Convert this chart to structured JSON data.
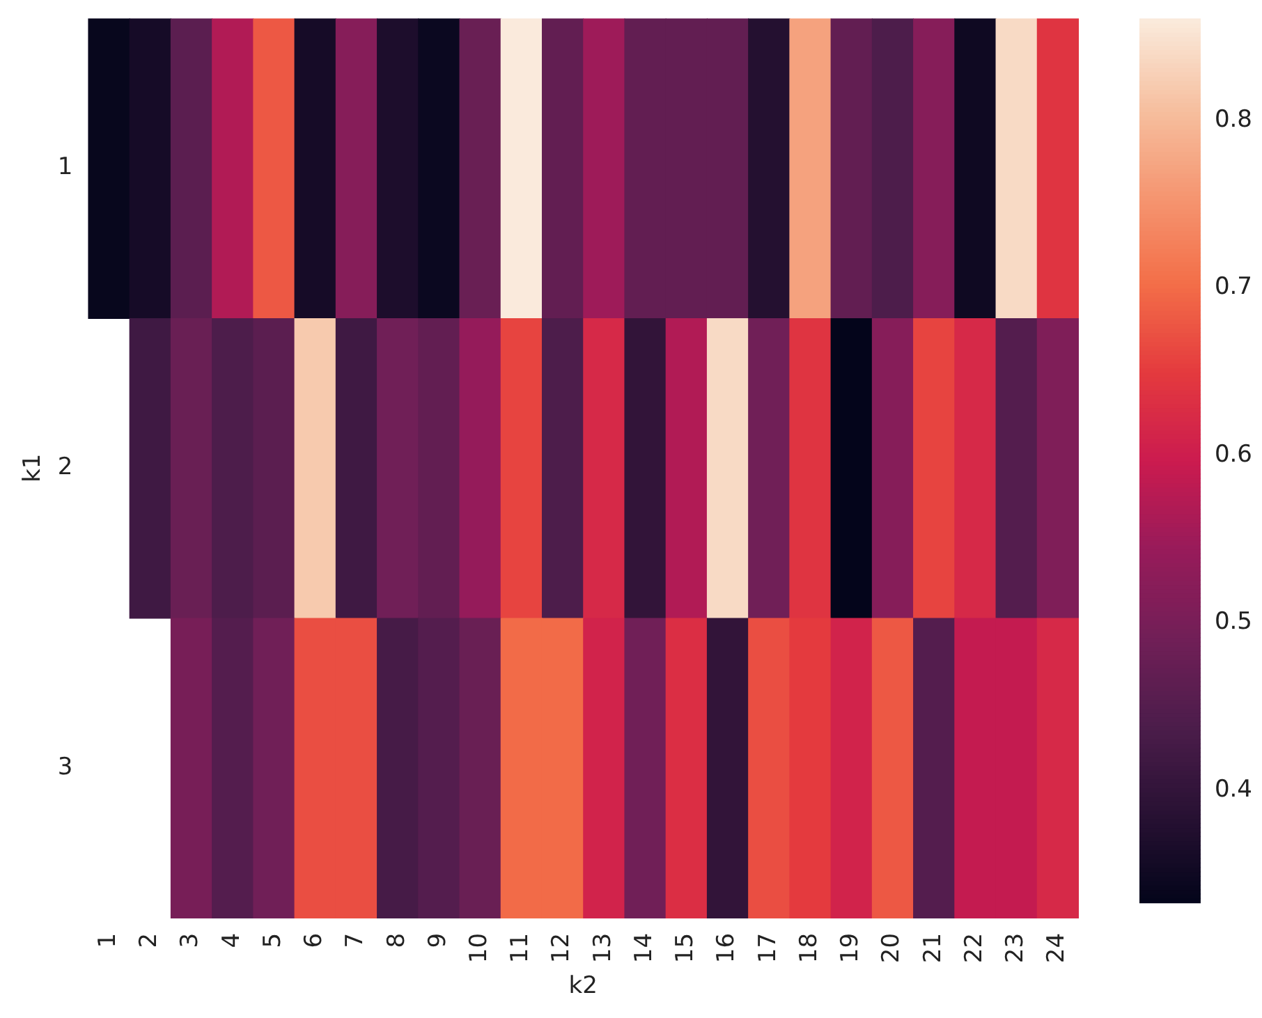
{
  "chart_data": {
    "type": "heatmap",
    "xlabel": "k2",
    "ylabel": "k1",
    "categories": [
      "1",
      "2",
      "3",
      "4",
      "5",
      "6",
      "7",
      "8",
      "9",
      "10",
      "11",
      "12",
      "13",
      "14",
      "15",
      "16",
      "17",
      "18",
      "19",
      "20",
      "21",
      "22",
      "23",
      "24"
    ],
    "y_categories": [
      "1",
      "2",
      "3"
    ],
    "cells": [
      [
        0.34,
        0.36,
        0.46,
        0.57,
        0.68,
        0.36,
        0.52,
        0.37,
        0.345,
        0.48,
        0.86,
        0.47,
        0.55,
        0.47,
        0.47,
        0.47,
        0.38,
        0.77,
        0.47,
        0.44,
        0.52,
        0.35,
        0.84,
        0.64
      ],
      [
        null,
        0.42,
        0.48,
        0.44,
        0.46,
        0.82,
        0.42,
        0.49,
        0.47,
        0.54,
        0.66,
        0.44,
        0.62,
        0.4,
        0.57,
        0.84,
        0.49,
        0.64,
        0.335,
        0.52,
        0.66,
        0.62,
        0.45,
        0.51
      ],
      [
        null,
        null,
        0.5,
        0.45,
        0.49,
        0.67,
        0.67,
        0.43,
        0.45,
        0.48,
        0.7,
        0.7,
        0.61,
        0.49,
        0.63,
        0.4,
        0.67,
        0.65,
        0.61,
        0.68,
        0.45,
        0.59,
        0.59,
        0.62
      ]
    ],
    "clim": [
      0.333,
      0.861
    ],
    "cticks": [
      0.4,
      0.5,
      0.6,
      0.7,
      0.8
    ]
  }
}
